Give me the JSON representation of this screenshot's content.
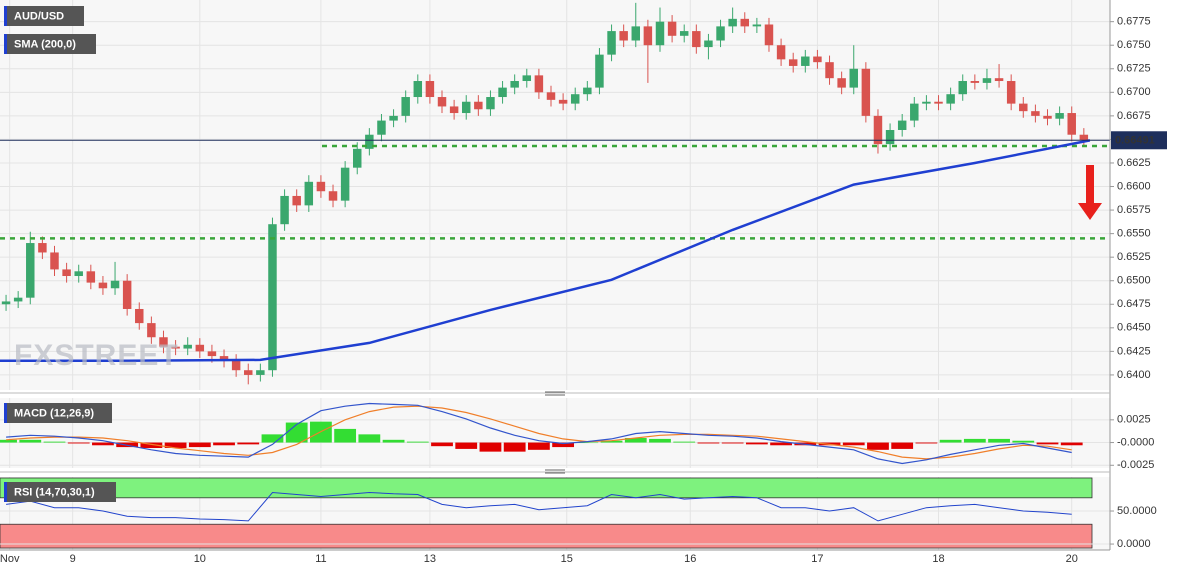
{
  "chart_data": [
    {
      "type": "candlestick",
      "title": "AUD/USD",
      "watermark": "FXSTREET",
      "up_color": "#3aa76d",
      "down_color": "#d9534f",
      "xlim": [
        -0.5,
        90.5
      ],
      "xticks": [
        {
          "value": 0.3,
          "label": "Nov"
        },
        {
          "value": 5.5,
          "label": "9"
        },
        {
          "value": 16,
          "label": "10"
        },
        {
          "value": 26,
          "label": "11"
        },
        {
          "value": 35,
          "label": "13"
        },
        {
          "value": 46.3,
          "label": "15"
        },
        {
          "value": 56.5,
          "label": "16"
        },
        {
          "value": 67,
          "label": "17"
        },
        {
          "value": 77,
          "label": "18"
        },
        {
          "value": 88,
          "label": "20"
        }
      ],
      "ylim": [
        0.6384,
        0.6798
      ],
      "yticks": [
        {
          "value": 0.64,
          "label": "0.6400"
        },
        {
          "value": 0.6425,
          "label": "0.6425"
        },
        {
          "value": 0.645,
          "label": "0.6450"
        },
        {
          "value": 0.6475,
          "label": "0.6475"
        },
        {
          "value": 0.65,
          "label": "0.6500"
        },
        {
          "value": 0.6525,
          "label": "0.6525"
        },
        {
          "value": 0.655,
          "label": "0.6550"
        },
        {
          "value": 0.6575,
          "label": "0.6575"
        },
        {
          "value": 0.66,
          "label": "0.6600"
        },
        {
          "value": 0.6625,
          "label": "0.6625"
        },
        {
          "value": 0.665,
          "label": "0.6650"
        },
        {
          "value": 0.6675,
          "label": "0.6675"
        },
        {
          "value": 0.67,
          "label": "0.6700"
        },
        {
          "value": 0.6725,
          "label": "0.6725"
        },
        {
          "value": 0.675,
          "label": "0.6750"
        },
        {
          "value": 0.6775,
          "label": "0.6775"
        }
      ],
      "open": [
        0.6475,
        0.6478,
        0.6482,
        0.654,
        0.653,
        0.6512,
        0.6505,
        0.651,
        0.6498,
        0.6492,
        0.65,
        0.647,
        0.6455,
        0.644,
        0.643,
        0.6428,
        0.6432,
        0.6425,
        0.642,
        0.6415,
        0.6405,
        0.64,
        0.6405,
        0.656,
        0.659,
        0.658,
        0.6605,
        0.6595,
        0.6585,
        0.662,
        0.664,
        0.6655,
        0.667,
        0.6675,
        0.6695,
        0.6712,
        0.6695,
        0.6685,
        0.6678,
        0.669,
        0.6682,
        0.6695,
        0.6705,
        0.6712,
        0.6718,
        0.67,
        0.6692,
        0.6688,
        0.6698,
        0.6705,
        0.674,
        0.6765,
        0.6755,
        0.677,
        0.675,
        0.6775,
        0.676,
        0.6765,
        0.6748,
        0.6755,
        0.677,
        0.6778,
        0.677,
        0.6772,
        0.675,
        0.6735,
        0.6728,
        0.6738,
        0.6732,
        0.6715,
        0.6705,
        0.6725,
        0.6675,
        0.6645,
        0.666,
        0.667,
        0.6688,
        0.669,
        0.6688,
        0.6698,
        0.6712,
        0.671,
        0.6715,
        0.6712,
        0.6688,
        0.668,
        0.6675,
        0.6672,
        0.6678,
        0.6655
      ],
      "high": [
        0.6485,
        0.6489,
        0.6552,
        0.6547,
        0.6537,
        0.6519,
        0.6517,
        0.6517,
        0.6505,
        0.652,
        0.6507,
        0.6477,
        0.6462,
        0.6447,
        0.6437,
        0.644,
        0.6439,
        0.6432,
        0.6427,
        0.6422,
        0.6412,
        0.6412,
        0.6567,
        0.6597,
        0.6597,
        0.6612,
        0.6612,
        0.6602,
        0.6627,
        0.6647,
        0.6662,
        0.6677,
        0.6682,
        0.6702,
        0.6719,
        0.6719,
        0.6702,
        0.6692,
        0.6697,
        0.6697,
        0.6702,
        0.6712,
        0.6719,
        0.6725,
        0.6725,
        0.6707,
        0.6699,
        0.6705,
        0.6712,
        0.6747,
        0.6772,
        0.6772,
        0.6795,
        0.6777,
        0.679,
        0.6782,
        0.6772,
        0.6772,
        0.6762,
        0.6777,
        0.679,
        0.6785,
        0.6779,
        0.6779,
        0.6757,
        0.6742,
        0.6745,
        0.6745,
        0.6739,
        0.6722,
        0.675,
        0.6732,
        0.6682,
        0.6667,
        0.6677,
        0.6695,
        0.6697,
        0.6697,
        0.6705,
        0.6719,
        0.6719,
        0.6725,
        0.673,
        0.6719,
        0.6695,
        0.6687,
        0.6682,
        0.6685,
        0.6685,
        0.6662
      ],
      "low": [
        0.6468,
        0.6471,
        0.6475,
        0.6523,
        0.6505,
        0.6498,
        0.6498,
        0.6491,
        0.6485,
        0.6485,
        0.6463,
        0.6448,
        0.6433,
        0.6423,
        0.6421,
        0.6421,
        0.6418,
        0.6413,
        0.6408,
        0.6398,
        0.639,
        0.6393,
        0.6398,
        0.6553,
        0.6573,
        0.6573,
        0.6588,
        0.6578,
        0.6578,
        0.6613,
        0.6633,
        0.6648,
        0.6663,
        0.6668,
        0.6688,
        0.6688,
        0.6678,
        0.6671,
        0.6671,
        0.6675,
        0.6675,
        0.6688,
        0.6698,
        0.6705,
        0.6693,
        0.6685,
        0.6681,
        0.6681,
        0.6691,
        0.6698,
        0.6733,
        0.6748,
        0.6748,
        0.671,
        0.6743,
        0.6753,
        0.6753,
        0.6741,
        0.6735,
        0.6748,
        0.6763,
        0.6763,
        0.6763,
        0.6743,
        0.6728,
        0.6721,
        0.6721,
        0.6725,
        0.6708,
        0.6698,
        0.6698,
        0.6668,
        0.6635,
        0.6638,
        0.6653,
        0.6663,
        0.6681,
        0.6681,
        0.6681,
        0.6691,
        0.6703,
        0.6703,
        0.6705,
        0.6681,
        0.6673,
        0.6668,
        0.6665,
        0.6665,
        0.6648,
        0.6642
      ],
      "close": [
        0.6478,
        0.6482,
        0.654,
        0.653,
        0.6512,
        0.6505,
        0.651,
        0.6498,
        0.6492,
        0.65,
        0.647,
        0.6455,
        0.644,
        0.643,
        0.6428,
        0.6432,
        0.6425,
        0.642,
        0.6415,
        0.6405,
        0.64,
        0.6405,
        0.656,
        0.659,
        0.658,
        0.6605,
        0.6595,
        0.6585,
        0.662,
        0.664,
        0.6655,
        0.667,
        0.6675,
        0.6695,
        0.6712,
        0.6695,
        0.6685,
        0.6678,
        0.669,
        0.6682,
        0.6695,
        0.6705,
        0.6712,
        0.6718,
        0.67,
        0.6692,
        0.6688,
        0.6698,
        0.6705,
        0.674,
        0.6765,
        0.6755,
        0.677,
        0.675,
        0.6775,
        0.676,
        0.6765,
        0.6748,
        0.6755,
        0.677,
        0.6778,
        0.677,
        0.6772,
        0.675,
        0.6735,
        0.6728,
        0.6738,
        0.6732,
        0.6715,
        0.6705,
        0.6725,
        0.6675,
        0.6645,
        0.666,
        0.667,
        0.6688,
        0.669,
        0.6688,
        0.6698,
        0.6712,
        0.671,
        0.6715,
        0.6712,
        0.6688,
        0.668,
        0.6675,
        0.6672,
        0.6678,
        0.6655,
        0.6649
      ],
      "sma": {
        "name": "SMA (200,0)",
        "color": "#1f3fd1",
        "x": [
          -0.5,
          10,
          21,
          30,
          40,
          50,
          60,
          70,
          80,
          89.5
        ],
        "values": [
          0.6415,
          0.6415,
          0.6416,
          0.6434,
          0.6469,
          0.6501,
          0.6554,
          0.6602,
          0.6625,
          0.6649
        ]
      },
      "levels": [
        0.6643,
        0.6545
      ],
      "level_color": "#3aa63a",
      "last_price": 0.66491,
      "last_price_color": "#1e2f5c"
    },
    {
      "type": "macd",
      "title": "MACD (12,26,9)",
      "ylim": [
        -0.0028,
        0.0049
      ],
      "yticks": [
        0.0025,
        {
          "value": 0,
          "label": "-0.0000"
        },
        -0.0025
      ],
      "x": [
        0,
        2,
        4,
        6,
        8,
        10,
        12,
        14,
        16,
        18,
        20,
        22,
        24,
        26,
        28,
        30,
        32,
        34,
        36,
        38,
        40,
        42,
        44,
        46,
        48,
        50,
        52,
        54,
        56,
        58,
        60,
        62,
        64,
        66,
        68,
        70,
        72,
        74,
        76,
        78,
        80,
        82,
        84,
        86,
        88
      ],
      "macd": [
        0.0006,
        0.0008,
        0.0007,
        0.0005,
        0.0002,
        -0.0003,
        -0.0008,
        -0.0012,
        -0.0014,
        -0.0015,
        -0.0016,
        -0.0002,
        0.002,
        0.0035,
        0.004,
        0.0043,
        0.0042,
        0.0041,
        0.0034,
        0.0026,
        0.0016,
        0.0008,
        0.0002,
        -0.0001,
        0.0001,
        0.0004,
        0.001,
        0.0012,
        0.001,
        0.0008,
        0.0007,
        0.0005,
        0.0001,
        -0.0002,
        -0.0005,
        -0.0008,
        -0.0018,
        -0.0023,
        -0.0019,
        -0.0013,
        -0.0008,
        -0.0003,
        -0.0001,
        -0.0006,
        -0.0011
      ],
      "signal": [
        0.0003,
        0.0005,
        0.0006,
        0.0006,
        0.0005,
        0.0002,
        -0.0002,
        -0.0006,
        -0.0009,
        -0.0012,
        -0.0014,
        -0.0011,
        -0.0002,
        0.0012,
        0.0025,
        0.0034,
        0.0039,
        0.004,
        0.0038,
        0.0033,
        0.0026,
        0.0018,
        0.001,
        0.0004,
        0.0001,
        0.0002,
        0.0005,
        0.0008,
        0.0009,
        0.0009,
        0.0008,
        0.0007,
        0.0004,
        0.0001,
        -0.0002,
        -0.0005,
        -0.001,
        -0.0016,
        -0.0018,
        -0.0016,
        -0.0012,
        -0.0007,
        -0.0003,
        -0.0004,
        -0.0008
      ],
      "histogram": [
        0.0003,
        0.0003,
        0.0001,
        -0.0001,
        -0.0003,
        -0.0005,
        -0.0006,
        -0.0006,
        -0.0005,
        -0.0003,
        -0.0002,
        0.0009,
        0.0022,
        0.0023,
        0.0015,
        0.0009,
        0.0003,
        0.0001,
        -0.0004,
        -0.0007,
        -0.001,
        -0.001,
        -0.0008,
        -0.0005,
        0,
        0.0002,
        0.0005,
        0.0004,
        0.0001,
        -0.0001,
        -0.0001,
        -0.0002,
        -0.0003,
        -0.0003,
        -0.0003,
        -0.0003,
        -0.0008,
        -0.0007,
        -0.0001,
        0.0003,
        0.0004,
        0.0004,
        0.0002,
        -0.0002,
        -0.0003
      ],
      "macd_color": "#3355cc",
      "signal_color": "#f07f2a",
      "pos_color": "#33dd33",
      "neg_color": "#e00000"
    },
    {
      "type": "rsi",
      "title": "RSI (14,70,30,1)",
      "ylim": [
        -9,
        101.5
      ],
      "yticks": [
        {
          "value": 50,
          "label": "50.0000"
        },
        {
          "value": 0,
          "label": "0.0000"
        }
      ],
      "bands": [
        {
          "range": [
            70,
            100
          ],
          "color": "#7ef27e"
        },
        {
          "range": [
            -6,
            30
          ],
          "color": "#f88a8a"
        }
      ],
      "x": [
        0,
        2,
        4,
        6,
        8,
        10,
        12,
        14,
        16,
        18,
        20,
        22,
        24,
        26,
        28,
        30,
        32,
        34,
        36,
        38,
        40,
        42,
        44,
        46,
        48,
        50,
        52,
        54,
        56,
        58,
        60,
        62,
        64,
        66,
        68,
        70,
        72,
        74,
        76,
        78,
        80,
        82,
        84,
        86,
        88
      ],
      "values": [
        60,
        65,
        55,
        55,
        50,
        42,
        40,
        40,
        38,
        37,
        35,
        78,
        75,
        72,
        75,
        78,
        76,
        75,
        60,
        55,
        58,
        60,
        52,
        55,
        58,
        75,
        70,
        75,
        68,
        70,
        72,
        70,
        55,
        55,
        50,
        55,
        35,
        45,
        55,
        58,
        60,
        55,
        50,
        48,
        45
      ],
      "color": "#2244cc"
    }
  ]
}
